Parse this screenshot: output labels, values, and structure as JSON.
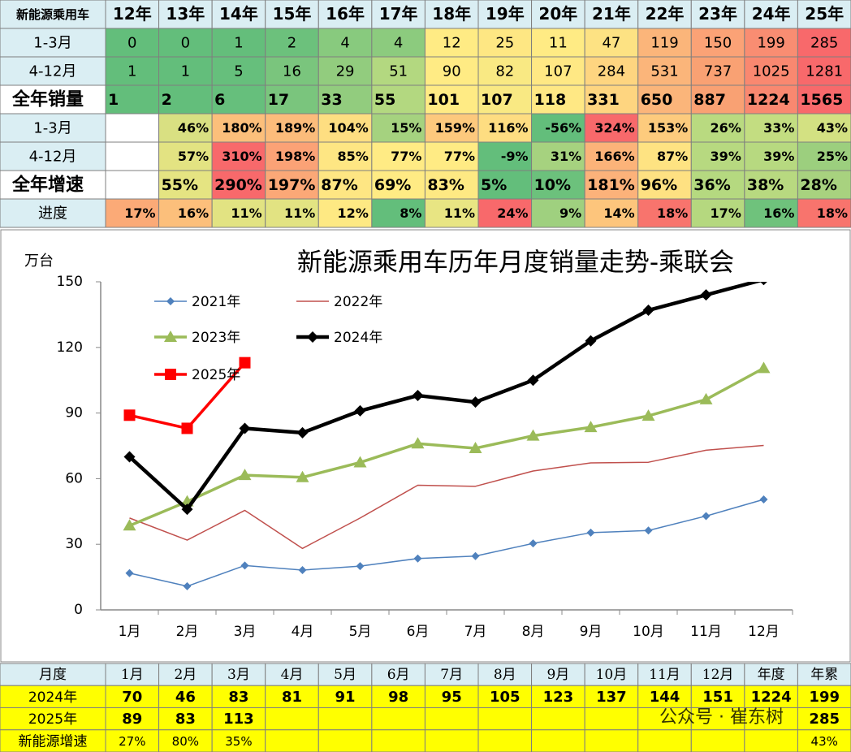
{
  "top_table": {
    "header": [
      "新能源乘用车",
      "12年",
      "13年",
      "14年",
      "15年",
      "16年",
      "17年",
      "18年",
      "19年",
      "20年",
      "21年",
      "22年",
      "23年",
      "24年",
      "25年"
    ],
    "rows": [
      {
        "label": "1-3月",
        "cells": [
          "0",
          "0",
          "1",
          "2",
          "4",
          "4",
          "12",
          "25",
          "11",
          "47",
          "119",
          "150",
          "199",
          "285"
        ],
        "colors": [
          "#63be7b",
          "#63be7b",
          "#64be7b",
          "#6cc17c",
          "#88ca7e",
          "#8ccb7e",
          "#ffeb84",
          "#fee783",
          "#ffeb84",
          "#fde283",
          "#fbb57a",
          "#fba276",
          "#f98d72",
          "#f8696b"
        ]
      },
      {
        "label": "4-12月",
        "cells": [
          "1",
          "1",
          "5",
          "16",
          "29",
          "51",
          "90",
          "82",
          "107",
          "284",
          "531",
          "737",
          "1025",
          "1281"
        ],
        "colors": [
          "#63be7b",
          "#63be7b",
          "#66bf7c",
          "#7ac57d",
          "#92cc7e",
          "#b3d880",
          "#ffeb84",
          "#f9e983",
          "#ffe884",
          "#fed580",
          "#fbb57a",
          "#f9a173",
          "#f98870",
          "#f8696b"
        ]
      },
      {
        "label": "全年销量",
        "cells": [
          "1",
          "2",
          "6",
          "17",
          "33",
          "55",
          "101",
          "107",
          "118",
          "331",
          "650",
          "887",
          "1224",
          "1565"
        ],
        "colors": [
          "#63be7b",
          "#63be7b",
          "#66bf7c",
          "#7ac57d",
          "#92cc7e",
          "#b3d880",
          "#ffeb84",
          "#f9e983",
          "#ffe884",
          "#fed580",
          "#fbb57a",
          "#f9a173",
          "#f98870",
          "#f8696b"
        ]
      },
      {
        "label": "1-3月",
        "cells": [
          null,
          "46%",
          "180%",
          "189%",
          "104%",
          "15%",
          "159%",
          "116%",
          "-56%",
          "324%",
          "153%",
          "26%",
          "33%",
          "43%"
        ],
        "colors": [
          "#ffffff",
          "#d9e082",
          "#fcbf7b",
          "#fcbc7b",
          "#fede81",
          "#a5d27f",
          "#fdc97d",
          "#fedd81",
          "#63be7b",
          "#f8696b",
          "#fdcb7d",
          "#b9da80",
          "#c3dd81",
          "#d3e182"
        ]
      },
      {
        "label": "4-12月",
        "cells": [
          null,
          "57%",
          "310%",
          "198%",
          "85%",
          "77%",
          "77%",
          "-9%",
          "31%",
          "166%",
          "87%",
          "39%",
          "39%",
          "25%"
        ],
        "colors": [
          "#ffffff",
          "#e3e382",
          "#f8696b",
          "#fba276",
          "#fee683",
          "#ffeb84",
          "#ffeb84",
          "#63be7b",
          "#a6d27f",
          "#fcb379",
          "#fee382",
          "#b7d980",
          "#b7d980",
          "#9ccf7e"
        ]
      },
      {
        "label": "全年增速",
        "cells": [
          null,
          "55%",
          "290%",
          "197%",
          "87%",
          "69%",
          "83%",
          "5%",
          "10%",
          "181%",
          "96%",
          "36%",
          "38%",
          "28%"
        ],
        "colors": [
          "#ffffff",
          "#e5e482",
          "#f8696b",
          "#fba877",
          "#fee683",
          "#ffeb84",
          "#fee983",
          "#63be7b",
          "#6cc17c",
          "#fcb27a",
          "#fee182",
          "#b5d980",
          "#b8d980",
          "#a8d27f"
        ]
      },
      {
        "label": "进度",
        "cells": [
          "17%",
          "16%",
          "11%",
          "11%",
          "12%",
          "8%",
          "11%",
          "24%",
          "9%",
          "14%",
          "18%",
          "17%",
          "16%",
          "18%"
        ],
        "colors": [
          "#fbaa77",
          "#fcbf7b",
          "#e2e382",
          "#e2e382",
          "#fee983",
          "#63be7b",
          "#e8e583",
          "#f8696b",
          "#9fd07f",
          "#fdc57c",
          "#f8746d",
          "#b5d87f",
          "#6fc27c",
          "#f8746d"
        ]
      }
    ]
  },
  "chart_data": {
    "type": "line",
    "title": "新能源乘用车历年月度销量走势-乘联会",
    "y_label": "万台",
    "categories": [
      "1月",
      "2月",
      "3月",
      "4月",
      "5月",
      "6月",
      "7月",
      "8月",
      "9月",
      "10月",
      "11月",
      "12月"
    ],
    "ylim": [
      0,
      150
    ],
    "yticks": [
      0,
      30,
      60,
      90,
      120,
      150
    ],
    "grid": false,
    "legend": "upper left",
    "series": [
      {
        "name": "2021年",
        "color": "#4f81bd",
        "marker": "diamond",
        "values": [
          16.8,
          10.8,
          20.3,
          18.2,
          20,
          23.5,
          24.6,
          30.4,
          35.3,
          36.3,
          42.9,
          50.5
        ]
      },
      {
        "name": "2022年",
        "color": "#c0504d",
        "marker": "none",
        "values": [
          42,
          31.9,
          45.5,
          28.1,
          42,
          57,
          56.5,
          63.5,
          67.2,
          67.5,
          73,
          75.2
        ]
      },
      {
        "name": "2023年",
        "color": "#9bbb59",
        "marker": "triangle",
        "values": [
          38.5,
          49.5,
          61.6,
          60.6,
          67.4,
          76,
          73.9,
          79.6,
          83.5,
          88.7,
          96.2,
          110.5
        ]
      },
      {
        "name": "2024年",
        "color": "#000000",
        "marker": "diamond",
        "values": [
          70,
          46,
          83,
          81,
          91,
          98,
          95,
          105,
          123,
          137,
          144,
          151
        ]
      },
      {
        "name": "2025年",
        "color": "#ff0000",
        "marker": "square",
        "values": [
          89,
          83,
          113,
          null,
          null,
          null,
          null,
          null,
          null,
          null,
          null,
          null
        ]
      }
    ]
  },
  "bottom_table": {
    "header": [
      "月度",
      "1月",
      "2月",
      "3月",
      "4月",
      "5月",
      "6月",
      "7月",
      "8月",
      "9月",
      "10月",
      "11月",
      "12月",
      "年度",
      "年累"
    ],
    "rows": [
      {
        "label": "2024年",
        "cells": [
          "70",
          "46",
          "83",
          "81",
          "91",
          "98",
          "95",
          "105",
          "123",
          "137",
          "144",
          "151",
          "1224",
          "199"
        ]
      },
      {
        "label": "2025年",
        "cells": [
          "89",
          "83",
          "113",
          null,
          null,
          null,
          null,
          null,
          null,
          null,
          null,
          null,
          null,
          "285"
        ]
      },
      {
        "label": "新能源增速",
        "cells": [
          "27%",
          "80%",
          "35%",
          null,
          null,
          null,
          null,
          null,
          null,
          null,
          null,
          null,
          null,
          "43%"
        ]
      }
    ]
  },
  "watermark": "公众号 · 崔东树"
}
